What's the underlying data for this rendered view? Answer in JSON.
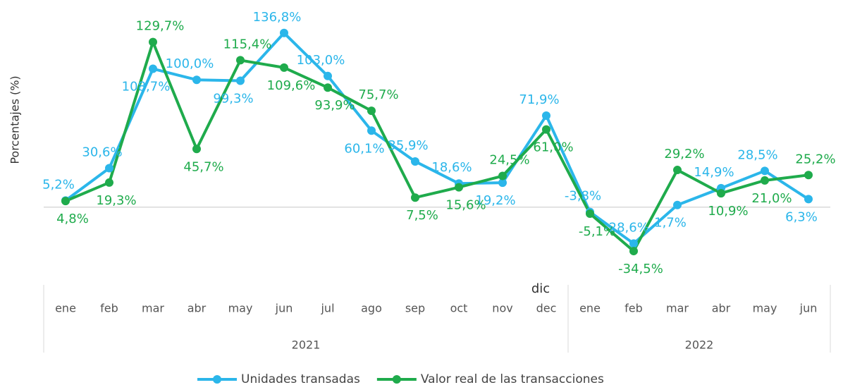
{
  "chart_data": {
    "type": "line",
    "y_label": "Porcentajes (%)",
    "categories": [
      "ene",
      "feb",
      "mar",
      "abr",
      "may",
      "jun",
      "jul",
      "ago",
      "sep",
      "oct",
      "nov",
      "dec",
      "ene",
      "feb",
      "mar",
      "abr",
      "may",
      "jun"
    ],
    "groups": [
      {
        "label": "2021",
        "count": 12
      },
      {
        "label": "2022",
        "count": 6
      }
    ],
    "annotations": [
      {
        "text": "dic",
        "category": 11
      }
    ],
    "ylim": [
      -40,
      140
    ],
    "legend": "bottom",
    "series": [
      {
        "name": "Unidades transadas",
        "color": "#2bb6ea",
        "values": [
          5.2,
          30.6,
          108.7,
          100.0,
          99.3,
          136.8,
          103.0,
          60.1,
          35.9,
          18.6,
          19.2,
          71.9,
          -3.8,
          -28.6,
          1.7,
          14.9,
          28.5,
          6.3
        ],
        "value_labels": [
          "5,2%",
          "30,6%",
          "108,7%",
          "100,0%",
          "99,3%",
          "136,8%",
          "103,0%",
          "60,1%",
          "35,9%",
          "18,6%",
          "19,2%",
          "71,9%",
          "-3,8%",
          "-28,6%",
          "1,7%",
          "14,9%",
          "28,5%",
          "6,3%"
        ]
      },
      {
        "name": "Valor real de las transacciones",
        "color": "#1fab4c",
        "values": [
          4.8,
          19.3,
          129.7,
          45.7,
          115.4,
          109.6,
          93.9,
          75.7,
          7.5,
          15.6,
          24.5,
          61.0,
          -5.1,
          -34.5,
          29.2,
          10.9,
          21.0,
          25.2
        ],
        "value_labels": [
          "4,8%",
          "19,3%",
          "129,7%",
          "45,7%",
          "115,4%",
          "109,6%",
          "93,9%",
          "75,7%",
          "7,5%",
          "15,6%",
          "24,5%",
          "61,0%",
          "-5,1%",
          "-34,5%",
          "29,2%",
          "10,9%",
          "21,0%",
          "25,2%"
        ]
      }
    ]
  }
}
